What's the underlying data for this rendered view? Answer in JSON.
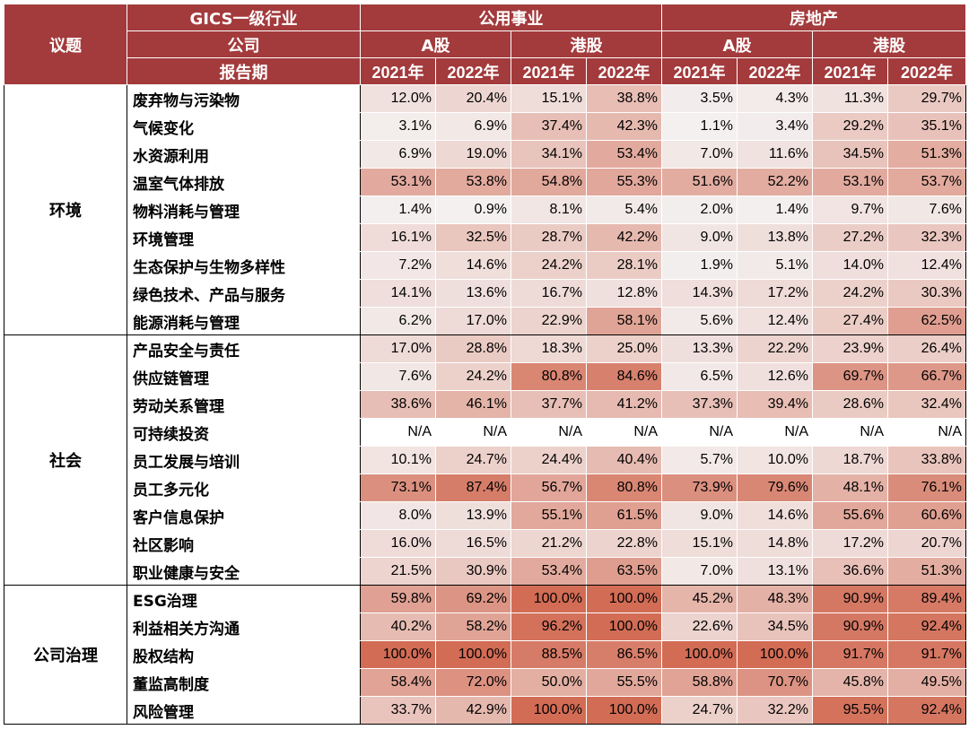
{
  "header": {
    "row1_label": "GICS一级行业",
    "topic_label": "议题",
    "industries": [
      "公用事业",
      "房地产"
    ],
    "row2_label": "公司",
    "markets": [
      "A股",
      "港股",
      "A股",
      "港股"
    ],
    "row3_label": "报告期",
    "years": [
      "2021年",
      "2022年",
      "2021年",
      "2022年",
      "2021年",
      "2022年",
      "2021年",
      "2022年"
    ]
  },
  "sections": [
    {
      "topic": "环境",
      "rows": [
        {
          "issue": "废弃物与污染物",
          "values": [
            "12.0%",
            "20.4%",
            "15.1%",
            "38.8%",
            "3.5%",
            "4.3%",
            "11.3%",
            "29.7%"
          ]
        },
        {
          "issue": "气候变化",
          "values": [
            "3.1%",
            "6.9%",
            "37.4%",
            "42.3%",
            "1.1%",
            "3.4%",
            "29.2%",
            "35.1%"
          ]
        },
        {
          "issue": "水资源利用",
          "values": [
            "6.9%",
            "19.0%",
            "34.1%",
            "53.4%",
            "7.0%",
            "11.6%",
            "34.5%",
            "51.3%"
          ]
        },
        {
          "issue": "温室气体排放",
          "values": [
            "53.1%",
            "53.8%",
            "54.8%",
            "55.3%",
            "51.6%",
            "52.2%",
            "53.1%",
            "53.7%"
          ]
        },
        {
          "issue": "物料消耗与管理",
          "values": [
            "1.4%",
            "0.9%",
            "8.1%",
            "5.4%",
            "2.0%",
            "1.4%",
            "9.7%",
            "7.6%"
          ]
        },
        {
          "issue": "环境管理",
          "values": [
            "16.1%",
            "32.5%",
            "28.7%",
            "42.2%",
            "9.0%",
            "13.8%",
            "27.2%",
            "32.3%"
          ]
        },
        {
          "issue": "生态保护与生物多样性",
          "values": [
            "7.2%",
            "14.6%",
            "24.2%",
            "28.1%",
            "1.9%",
            "5.1%",
            "14.0%",
            "12.4%"
          ]
        },
        {
          "issue": "绿色技术、产品与服务",
          "values": [
            "14.1%",
            "13.6%",
            "16.7%",
            "12.8%",
            "14.3%",
            "17.2%",
            "24.2%",
            "30.3%"
          ]
        },
        {
          "issue": "能源消耗与管理",
          "values": [
            "6.2%",
            "17.0%",
            "22.9%",
            "58.1%",
            "5.6%",
            "12.4%",
            "27.4%",
            "62.5%"
          ]
        }
      ]
    },
    {
      "topic": "社会",
      "rows": [
        {
          "issue": "产品安全与责任",
          "values": [
            "17.0%",
            "28.8%",
            "18.3%",
            "25.0%",
            "13.3%",
            "22.2%",
            "23.9%",
            "26.4%"
          ]
        },
        {
          "issue": "供应链管理",
          "values": [
            "7.6%",
            "24.2%",
            "80.8%",
            "84.6%",
            "6.5%",
            "12.6%",
            "69.7%",
            "66.7%"
          ]
        },
        {
          "issue": "劳动关系管理",
          "values": [
            "38.6%",
            "46.1%",
            "37.7%",
            "41.2%",
            "37.3%",
            "39.4%",
            "28.6%",
            "32.4%"
          ]
        },
        {
          "issue": "可持续投资",
          "values": [
            "N/A",
            "N/A",
            "N/A",
            "N/A",
            "N/A",
            "N/A",
            "N/A",
            "N/A"
          ]
        },
        {
          "issue": "员工发展与培训",
          "values": [
            "10.1%",
            "24.7%",
            "24.4%",
            "40.4%",
            "5.7%",
            "10.0%",
            "18.7%",
            "33.8%"
          ]
        },
        {
          "issue": "员工多元化",
          "values": [
            "73.1%",
            "87.4%",
            "56.7%",
            "80.8%",
            "73.9%",
            "79.6%",
            "48.1%",
            "76.1%"
          ]
        },
        {
          "issue": "客户信息保护",
          "values": [
            "8.0%",
            "13.9%",
            "55.1%",
            "61.5%",
            "9.0%",
            "14.6%",
            "55.6%",
            "60.6%"
          ]
        },
        {
          "issue": "社区影响",
          "values": [
            "16.0%",
            "16.5%",
            "21.2%",
            "22.8%",
            "15.1%",
            "14.8%",
            "17.2%",
            "20.7%"
          ]
        },
        {
          "issue": "职业健康与安全",
          "values": [
            "21.5%",
            "30.9%",
            "53.4%",
            "63.5%",
            "7.0%",
            "13.1%",
            "36.6%",
            "51.3%"
          ]
        }
      ]
    },
    {
      "topic": "公司治理",
      "rows": [
        {
          "issue": "ESG治理",
          "values": [
            "59.8%",
            "69.2%",
            "100.0%",
            "100.0%",
            "45.2%",
            "48.3%",
            "90.9%",
            "89.4%"
          ]
        },
        {
          "issue": "利益相关方沟通",
          "values": [
            "40.2%",
            "58.2%",
            "96.2%",
            "100.0%",
            "22.6%",
            "34.5%",
            "90.9%",
            "92.4%"
          ]
        },
        {
          "issue": "股权结构",
          "values": [
            "100.0%",
            "100.0%",
            "88.5%",
            "86.5%",
            "100.0%",
            "100.0%",
            "91.7%",
            "91.7%"
          ]
        },
        {
          "issue": "董监高制度",
          "values": [
            "58.4%",
            "72.0%",
            "50.0%",
            "55.5%",
            "58.8%",
            "70.7%",
            "45.8%",
            "49.5%"
          ]
        },
        {
          "issue": "风险管理",
          "values": [
            "33.7%",
            "42.9%",
            "100.0%",
            "100.0%",
            "24.7%",
            "32.2%",
            "95.5%",
            "92.4%"
          ]
        }
      ]
    }
  ],
  "colors": {
    "header_bg": "#a33a3c",
    "heat_low": "#f4f1f1",
    "heat_high": "#d26c55"
  }
}
